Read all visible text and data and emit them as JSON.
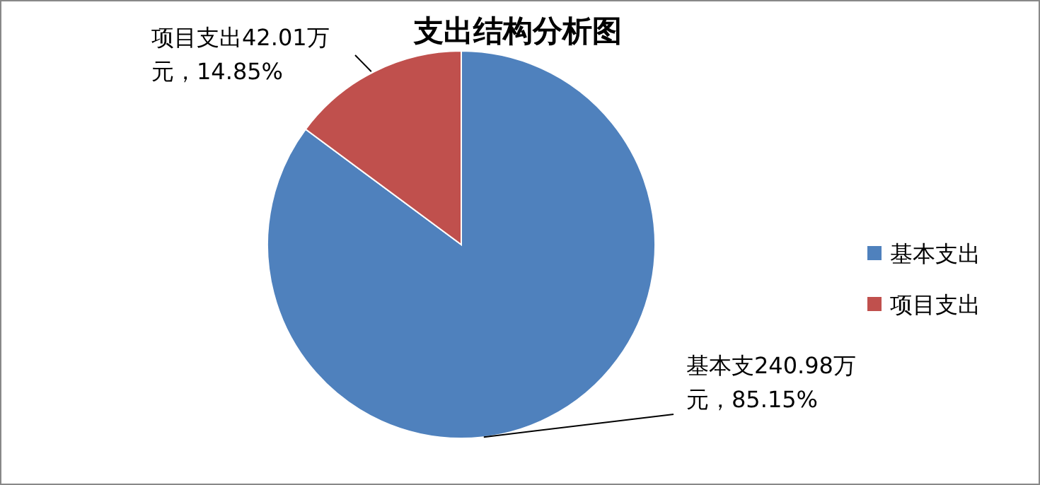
{
  "chart_data": {
    "type": "pie",
    "title": "支出结构分析图",
    "categories": [
      "基本支出",
      "项目支出"
    ],
    "values": [
      240.98,
      42.01
    ],
    "colors": [
      "#4f81bd",
      "#c0504d"
    ],
    "value_labels": [
      "基本支240.98万元，85.15%",
      "项目支出42.01万元，14.85%"
    ],
    "legend": "right"
  }
}
